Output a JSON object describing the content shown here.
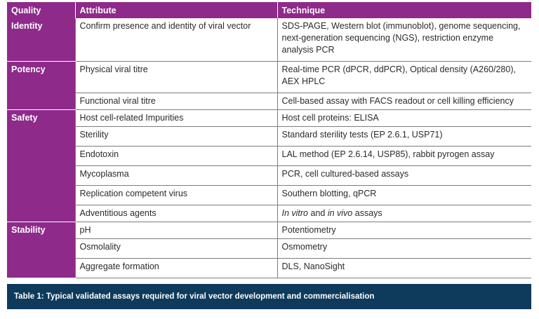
{
  "table": {
    "headers": {
      "quality": "Quality",
      "attribute": "Attribute",
      "technique": "Technique"
    },
    "groups": [
      {
        "quality": "Identity",
        "rows": [
          {
            "attribute": "Confirm presence and identity of viral vector",
            "technique": "SDS-PAGE, Western blot (immunoblot), genome sequencing, next-generation sequencing (NGS), restriction enzyme analysis PCR"
          }
        ]
      },
      {
        "quality": "Potency",
        "rows": [
          {
            "attribute": "Physical viral titre",
            "technique": "Real-time PCR (dPCR, ddPCR), Optical density (A260/280), AEX HPLC"
          },
          {
            "attribute": "Functional viral titre",
            "technique": "Cell-based assay with FACS readout or cell killing efficiency"
          }
        ]
      },
      {
        "quality": "Safety",
        "rows": [
          {
            "attribute": "Host cell-related Impurities",
            "technique": "Host cell proteins: ELISA"
          },
          {
            "attribute": "Sterility",
            "technique": "Standard sterility tests (EP 2.6.1, USP71)"
          },
          {
            "attribute": "Endotoxin",
            "technique": "LAL method (EP 2.6.14, USP85), rabbit pyrogen assay"
          },
          {
            "attribute": "Mycoplasma",
            "technique": "PCR, cell cultured-based assays"
          },
          {
            "attribute": "Replication competent virus",
            "technique": "Southern blotting, qPCR"
          },
          {
            "attribute": "Adventitious agents",
            "technique_parts": [
              "In vitro",
              " and ",
              "in vivo",
              " assays"
            ]
          }
        ]
      },
      {
        "quality": "Stability",
        "rows": [
          {
            "attribute": "pH",
            "technique": "Potentiometry"
          },
          {
            "attribute": "Osmolality",
            "technique": "Osmometry"
          },
          {
            "attribute": "Aggregate formation",
            "technique": "DLS, NanoSight"
          }
        ]
      }
    ]
  },
  "caption": "Table 1: Typical validated assays required for viral vector development and commercialisation",
  "colors": {
    "header_purple": "#8e2a8a",
    "caption_navy": "#0e3a5c"
  }
}
